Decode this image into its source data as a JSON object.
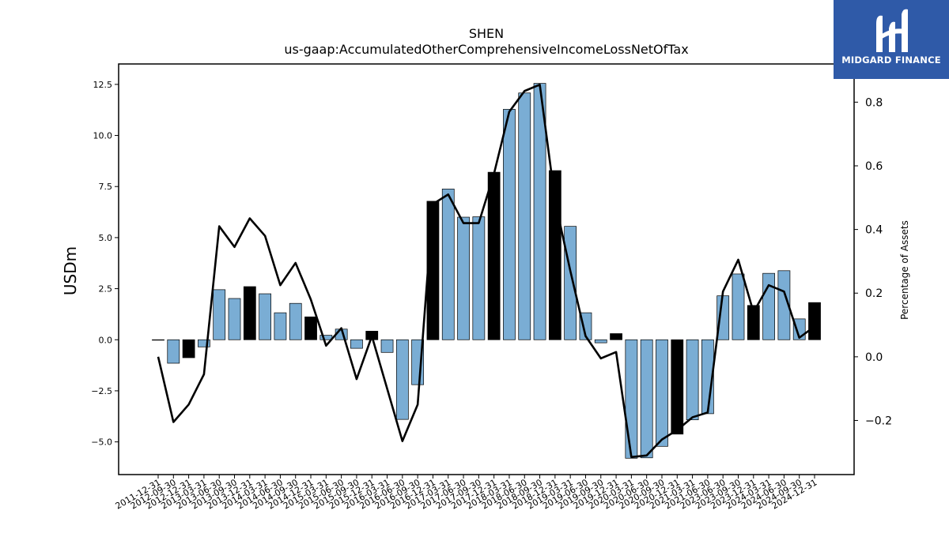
{
  "chart_data": {
    "type": "bar",
    "title": "SHEN",
    "subtitle": "us-gaap:AccumulatedOtherComprehensiveIncomeLossNetOfTax",
    "ylabel": "USDm",
    "y2label": "Percentage of Assets",
    "ylim": [
      -6.6,
      13.5
    ],
    "y2lim": [
      -0.37,
      0.92
    ],
    "yticks": [
      "12.5",
      "10.0",
      "7.5",
      "5.0",
      "2.5",
      "0.0",
      "−2.5",
      "−5.0"
    ],
    "y2ticks": [
      "0.8",
      "0.6",
      "0.4",
      "0.2",
      "0.0",
      "−0.2"
    ],
    "categories": [
      "2011-12-31",
      "2012-09-30",
      "2012-12-31",
      "2013-03-31",
      "2013-06-30",
      "2013-09-30",
      "2013-12-31",
      "2014-03-31",
      "2014-06-30",
      "2014-09-30",
      "2014-12-31",
      "2015-03-31",
      "2015-06-30",
      "2015-09-30",
      "2015-12-31",
      "2016-03-31",
      "2016-06-30",
      "2016-09-30",
      "2016-12-31",
      "2017-03-31",
      "2017-06-30",
      "2017-09-30",
      "2017-12-31",
      "2018-03-31",
      "2018-06-30",
      "2018-09-30",
      "2018-12-31",
      "2019-03-31",
      "2019-06-30",
      "2019-09-30",
      "2019-12-31",
      "2020-03-31",
      "2020-06-30",
      "2020-09-30",
      "2020-12-31",
      "2021-03-31",
      "2021-06-30",
      "2023-06-30",
      "2023-09-30",
      "2023-12-31",
      "2024-03-31",
      "2024-06-30",
      "2024-09-30",
      "2024-12-31"
    ],
    "series": [
      {
        "kind": "bar",
        "values": [
          -0.02,
          -1.15,
          -0.88,
          -0.35,
          2.45,
          2.02,
          2.6,
          2.25,
          1.32,
          1.78,
          1.12,
          0.22,
          0.52,
          -0.42,
          0.42,
          -0.62,
          -3.9,
          -2.2,
          6.78,
          7.38,
          6.0,
          6.02,
          8.2,
          11.28,
          12.08,
          12.55,
          8.28,
          5.55,
          1.32,
          -0.15,
          0.3,
          -5.8,
          -5.78,
          -5.22,
          -4.62,
          -3.92,
          -3.62,
          2.15,
          3.22,
          1.68,
          3.25,
          3.38,
          1.02,
          1.82
        ],
        "highlight": [
          false,
          false,
          true,
          false,
          false,
          false,
          true,
          false,
          false,
          false,
          true,
          false,
          false,
          false,
          true,
          false,
          false,
          false,
          true,
          false,
          false,
          false,
          true,
          false,
          false,
          false,
          true,
          false,
          false,
          false,
          true,
          false,
          false,
          false,
          true,
          false,
          false,
          false,
          false,
          true,
          false,
          false,
          false,
          true
        ]
      },
      {
        "kind": "line",
        "axis": "right",
        "values": [
          0.0,
          -0.205,
          -0.15,
          -0.055,
          0.41,
          0.345,
          0.435,
          0.38,
          0.225,
          0.295,
          0.18,
          0.035,
          0.09,
          -0.07,
          0.065,
          -0.1,
          -0.265,
          -0.15,
          0.48,
          0.51,
          0.42,
          0.42,
          0.575,
          0.77,
          0.835,
          0.855,
          0.49,
          0.27,
          0.065,
          -0.005,
          0.015,
          -0.315,
          -0.31,
          -0.26,
          -0.23,
          -0.19,
          -0.175,
          0.205,
          0.305,
          0.14,
          0.225,
          0.205,
          0.06,
          0.095
        ]
      }
    ],
    "colors": {
      "bar": "#7aadd4",
      "highlight": "#000000",
      "line": "#000000"
    },
    "grid": false
  },
  "logo": {
    "text": "MIDGARD FINANCE"
  }
}
